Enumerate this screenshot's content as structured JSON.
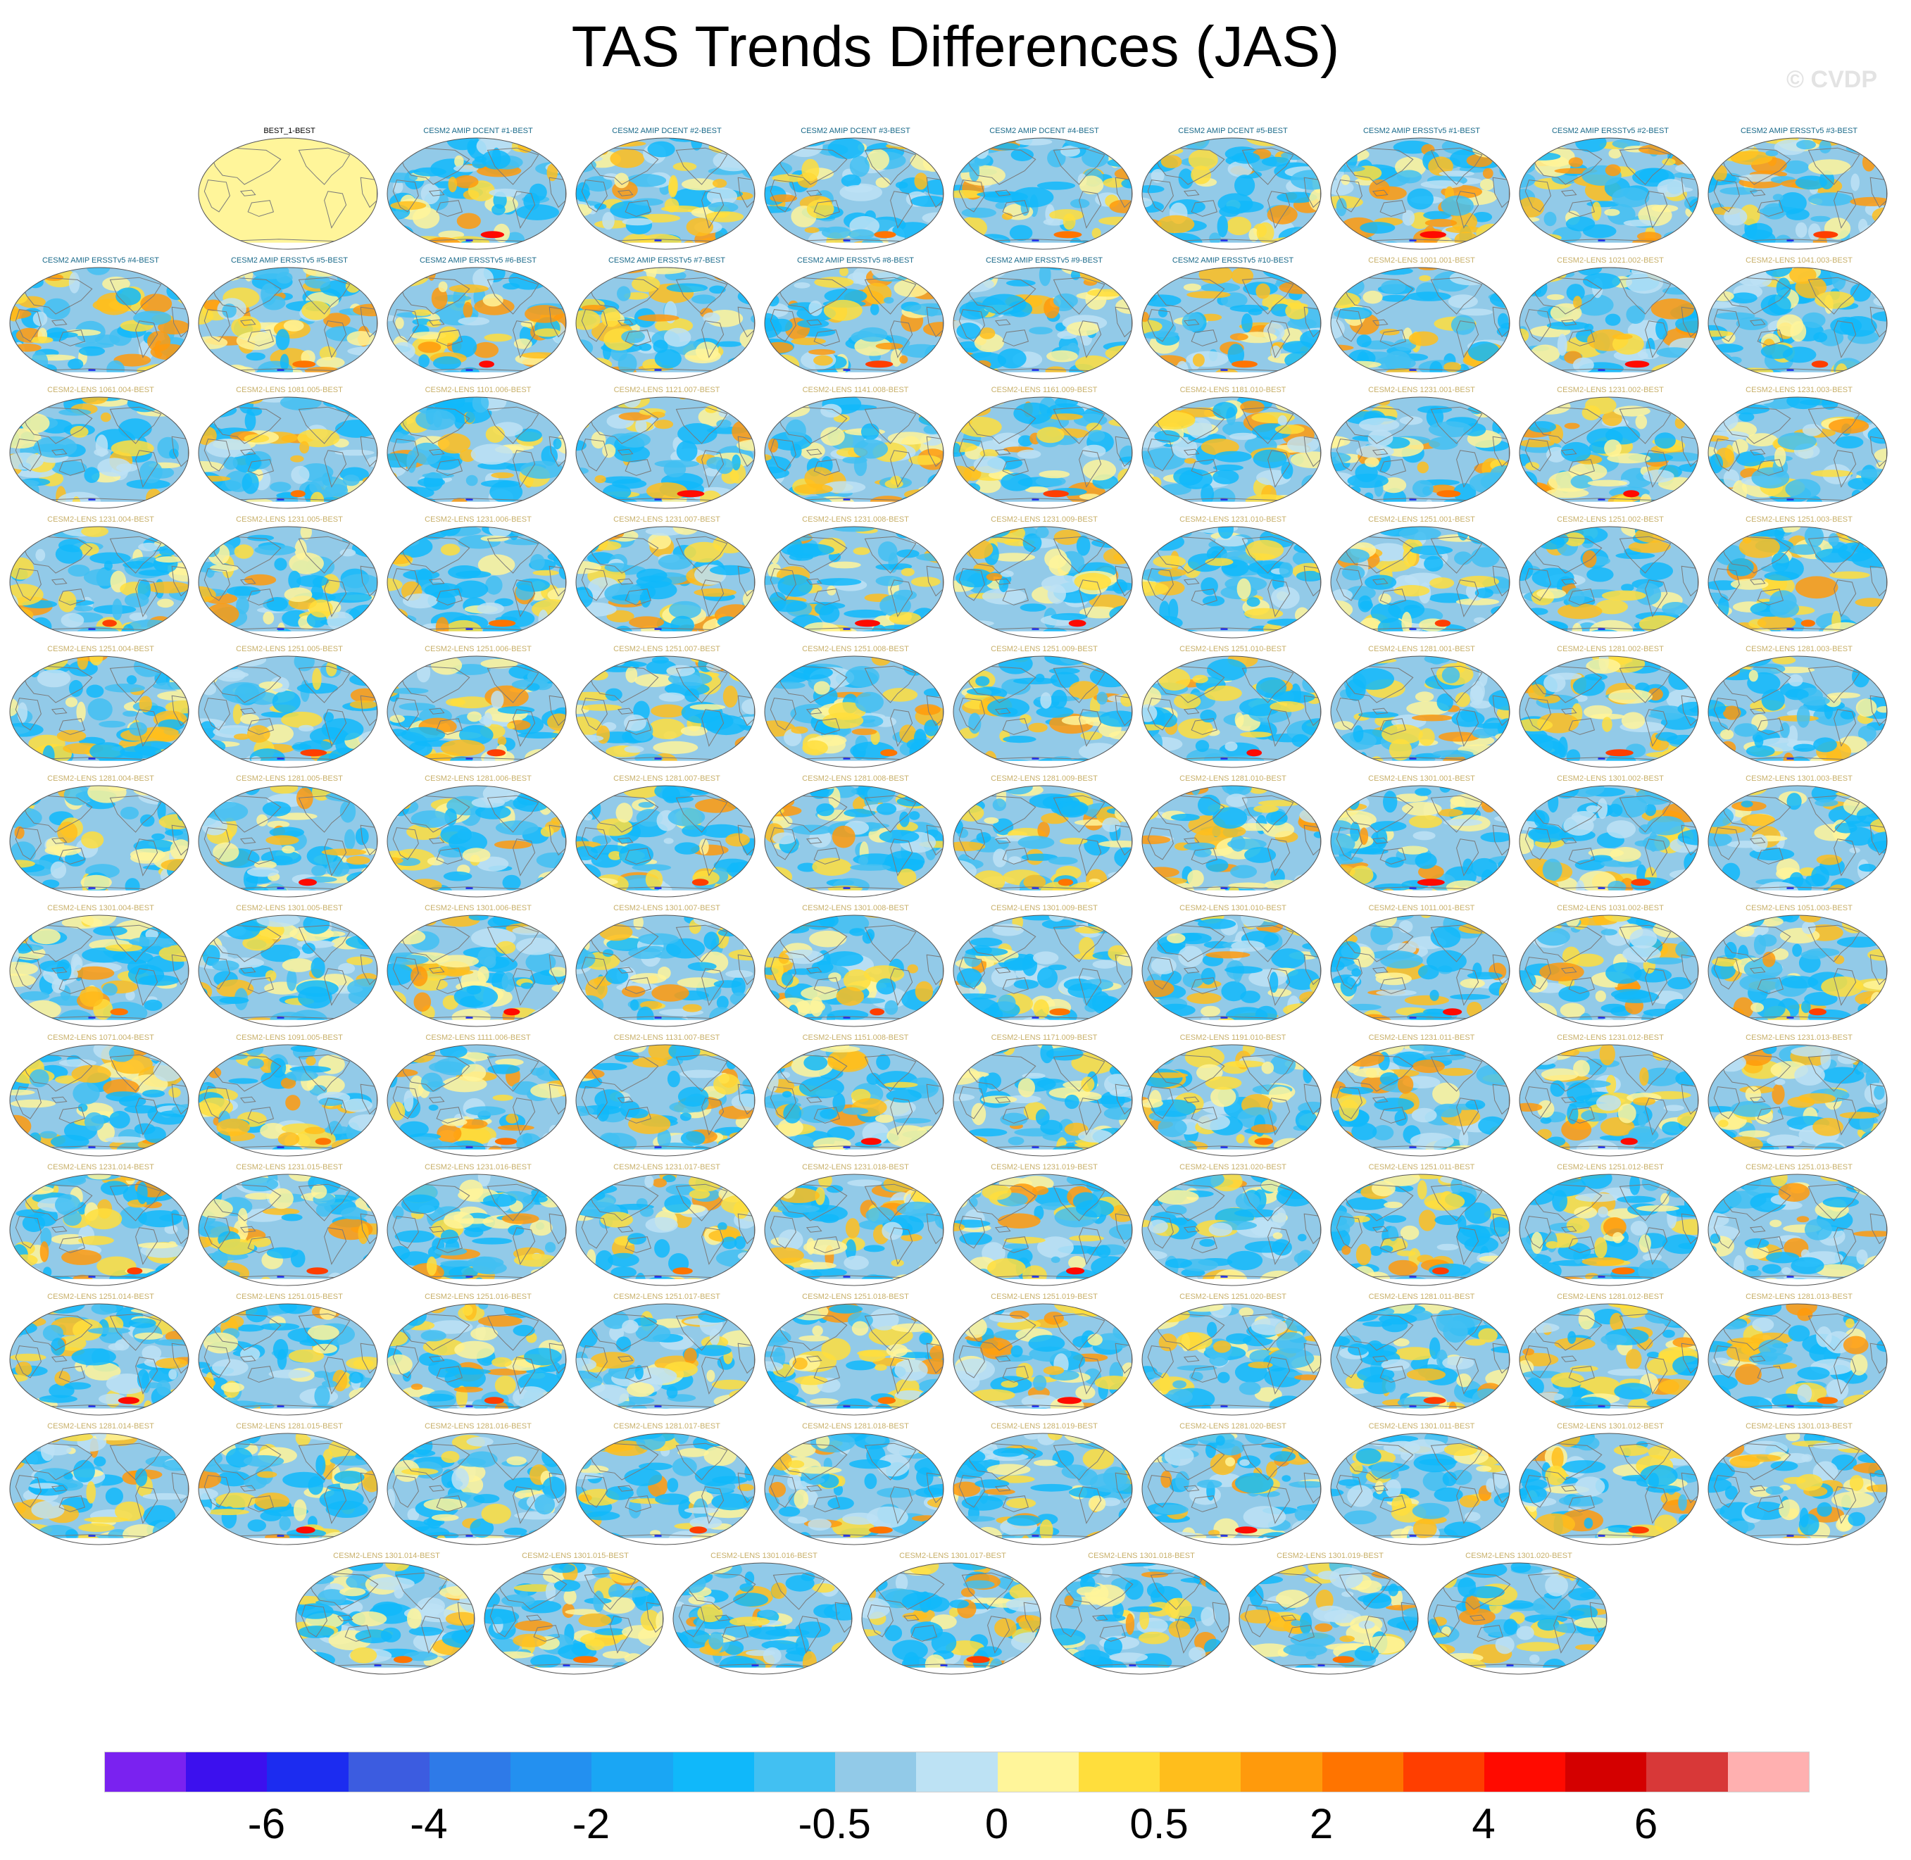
{
  "chart_data": {
    "type": "heatmap",
    "title": "TAS Trends Differences (JAS)",
    "watermark": "© CVDP",
    "projection": "Robinson global maps, centered on the Pacific",
    "panels": [
      "BEST_1-BEST",
      "CESM2 AMIP DCENT #1-BEST",
      "CESM2 AMIP DCENT #2-BEST",
      "CESM2 AMIP DCENT #3-BEST",
      "CESM2 AMIP DCENT #4-BEST",
      "CESM2 AMIP DCENT #5-BEST",
      "CESM2 AMIP ERSSTv5 #1-BEST",
      "CESM2 AMIP ERSSTv5 #2-BEST",
      "CESM2 AMIP ERSSTv5 #3-BEST",
      "CESM2 AMIP ERSSTv5 #4-BEST",
      "CESM2 AMIP ERSSTv5 #5-BEST",
      "CESM2 AMIP ERSSTv5 #6-BEST",
      "CESM2 AMIP ERSSTv5 #7-BEST",
      "CESM2 AMIP ERSSTv5 #8-BEST",
      "CESM2 AMIP ERSSTv5 #9-BEST",
      "CESM2 AMIP ERSSTv5 #10-BEST",
      "CESM2-LENS 1001.001-BEST",
      "CESM2-LENS 1021.002-BEST",
      "CESM2-LENS 1041.003-BEST",
      "CESM2-LENS 1061.004-BEST",
      "CESM2-LENS 1081.005-BEST",
      "CESM2-LENS 1101.006-BEST",
      "CESM2-LENS 1121.007-BEST",
      "CESM2-LENS 1141.008-BEST",
      "CESM2-LENS 1161.009-BEST",
      "CESM2-LENS 1181.010-BEST",
      "CESM2-LENS 1231.001-BEST",
      "CESM2-LENS 1231.002-BEST",
      "CESM2-LENS 1231.003-BEST",
      "CESM2-LENS 1231.004-BEST",
      "CESM2-LENS 1231.005-BEST",
      "CESM2-LENS 1231.006-BEST",
      "CESM2-LENS 1231.007-BEST",
      "CESM2-LENS 1231.008-BEST",
      "CESM2-LENS 1231.009-BEST",
      "CESM2-LENS 1231.010-BEST",
      "CESM2-LENS 1251.001-BEST",
      "CESM2-LENS 1251.002-BEST",
      "CESM2-LENS 1251.003-BEST",
      "CESM2-LENS 1251.004-BEST",
      "CESM2-LENS 1251.005-BEST",
      "CESM2-LENS 1251.006-BEST",
      "CESM2-LENS 1251.007-BEST",
      "CESM2-LENS 1251.008-BEST",
      "CESM2-LENS 1251.009-BEST",
      "CESM2-LENS 1251.010-BEST",
      "CESM2-LENS 1281.001-BEST",
      "CESM2-LENS 1281.002-BEST",
      "CESM2-LENS 1281.003-BEST",
      "CESM2-LENS 1281.004-BEST",
      "CESM2-LENS 1281.005-BEST",
      "CESM2-LENS 1281.006-BEST",
      "CESM2-LENS 1281.007-BEST",
      "CESM2-LENS 1281.008-BEST",
      "CESM2-LENS 1281.009-BEST",
      "CESM2-LENS 1281.010-BEST",
      "CESM2-LENS 1301.001-BEST",
      "CESM2-LENS 1301.002-BEST",
      "CESM2-LENS 1301.003-BEST",
      "CESM2-LENS 1301.004-BEST",
      "CESM2-LENS 1301.005-BEST",
      "CESM2-LENS 1301.006-BEST",
      "CESM2-LENS 1301.007-BEST",
      "CESM2-LENS 1301.008-BEST",
      "CESM2-LENS 1301.009-BEST",
      "CESM2-LENS 1301.010-BEST",
      "CESM2-LENS 1011.001-BEST",
      "CESM2-LENS 1031.002-BEST",
      "CESM2-LENS 1051.003-BEST",
      "CESM2-LENS 1071.004-BEST",
      "CESM2-LENS 1091.005-BEST",
      "CESM2-LENS 1111.006-BEST",
      "CESM2-LENS 1131.007-BEST",
      "CESM2-LENS 1151.008-BEST",
      "CESM2-LENS 1171.009-BEST",
      "CESM2-LENS 1191.010-BEST",
      "CESM2-LENS 1231.011-BEST",
      "CESM2-LENS 1231.012-BEST",
      "CESM2-LENS 1231.013-BEST",
      "CESM2-LENS 1231.014-BEST",
      "CESM2-LENS 1231.015-BEST",
      "CESM2-LENS 1231.016-BEST",
      "CESM2-LENS 1231.017-BEST",
      "CESM2-LENS 1231.018-BEST",
      "CESM2-LENS 1231.019-BEST",
      "CESM2-LENS 1231.020-BEST",
      "CESM2-LENS 1251.011-BEST",
      "CESM2-LENS 1251.012-BEST",
      "CESM2-LENS 1251.013-BEST",
      "CESM2-LENS 1251.014-BEST",
      "CESM2-LENS 1251.015-BEST",
      "CESM2-LENS 1251.016-BEST",
      "CESM2-LENS 1251.017-BEST",
      "CESM2-LENS 1251.018-BEST",
      "CESM2-LENS 1251.019-BEST",
      "CESM2-LENS 1251.020-BEST",
      "CESM2-LENS 1281.011-BEST",
      "CESM2-LENS 1281.012-BEST",
      "CESM2-LENS 1281.013-BEST",
      "CESM2-LENS 1281.014-BEST",
      "CESM2-LENS 1281.015-BEST",
      "CESM2-LENS 1281.016-BEST",
      "CESM2-LENS 1281.017-BEST",
      "CESM2-LENS 1281.018-BEST",
      "CESM2-LENS 1281.019-BEST",
      "CESM2-LENS 1281.020-BEST",
      "CESM2-LENS 1301.011-BEST",
      "CESM2-LENS 1301.012-BEST",
      "CESM2-LENS 1301.013-BEST",
      "CESM2-LENS 1301.014-BEST",
      "CESM2-LENS 1301.015-BEST",
      "CESM2-LENS 1301.016-BEST",
      "CESM2-LENS 1301.017-BEST",
      "CESM2-LENS 1301.018-BEST",
      "CESM2-LENS 1301.019-BEST",
      "CESM2-LENS 1301.020-BEST"
    ],
    "title_colors": {
      "observations": "#000000",
      "amip": "#1a6a8a",
      "lens": "#c8b06a"
    },
    "colorbar": {
      "colors": [
        "#7a22f0",
        "#3c10ee",
        "#1c2cf0",
        "#3c5ce0",
        "#2e7ae8",
        "#2390f0",
        "#1aa6f4",
        "#10b8fa",
        "#42c0f2",
        "#92cae8",
        "#bde2f4",
        "#fff59a",
        "#ffde3c",
        "#ffbe1c",
        "#ff9a0c",
        "#ff7400",
        "#ff3e00",
        "#ff0a00",
        "#d40000",
        "#d83838",
        "#ffb0b0"
      ],
      "tick_labels": [
        "-6",
        "-4",
        "-2",
        "-0.5",
        "0",
        "0.5",
        "2",
        "4",
        "6"
      ],
      "tick_boundaries": [
        2,
        4,
        6,
        9,
        11,
        13,
        15,
        17,
        19
      ]
    },
    "colors": {
      "map_fill_best": "#fff59a",
      "continent_outline": "#7a7a7a",
      "map_border": "#555555"
    }
  }
}
